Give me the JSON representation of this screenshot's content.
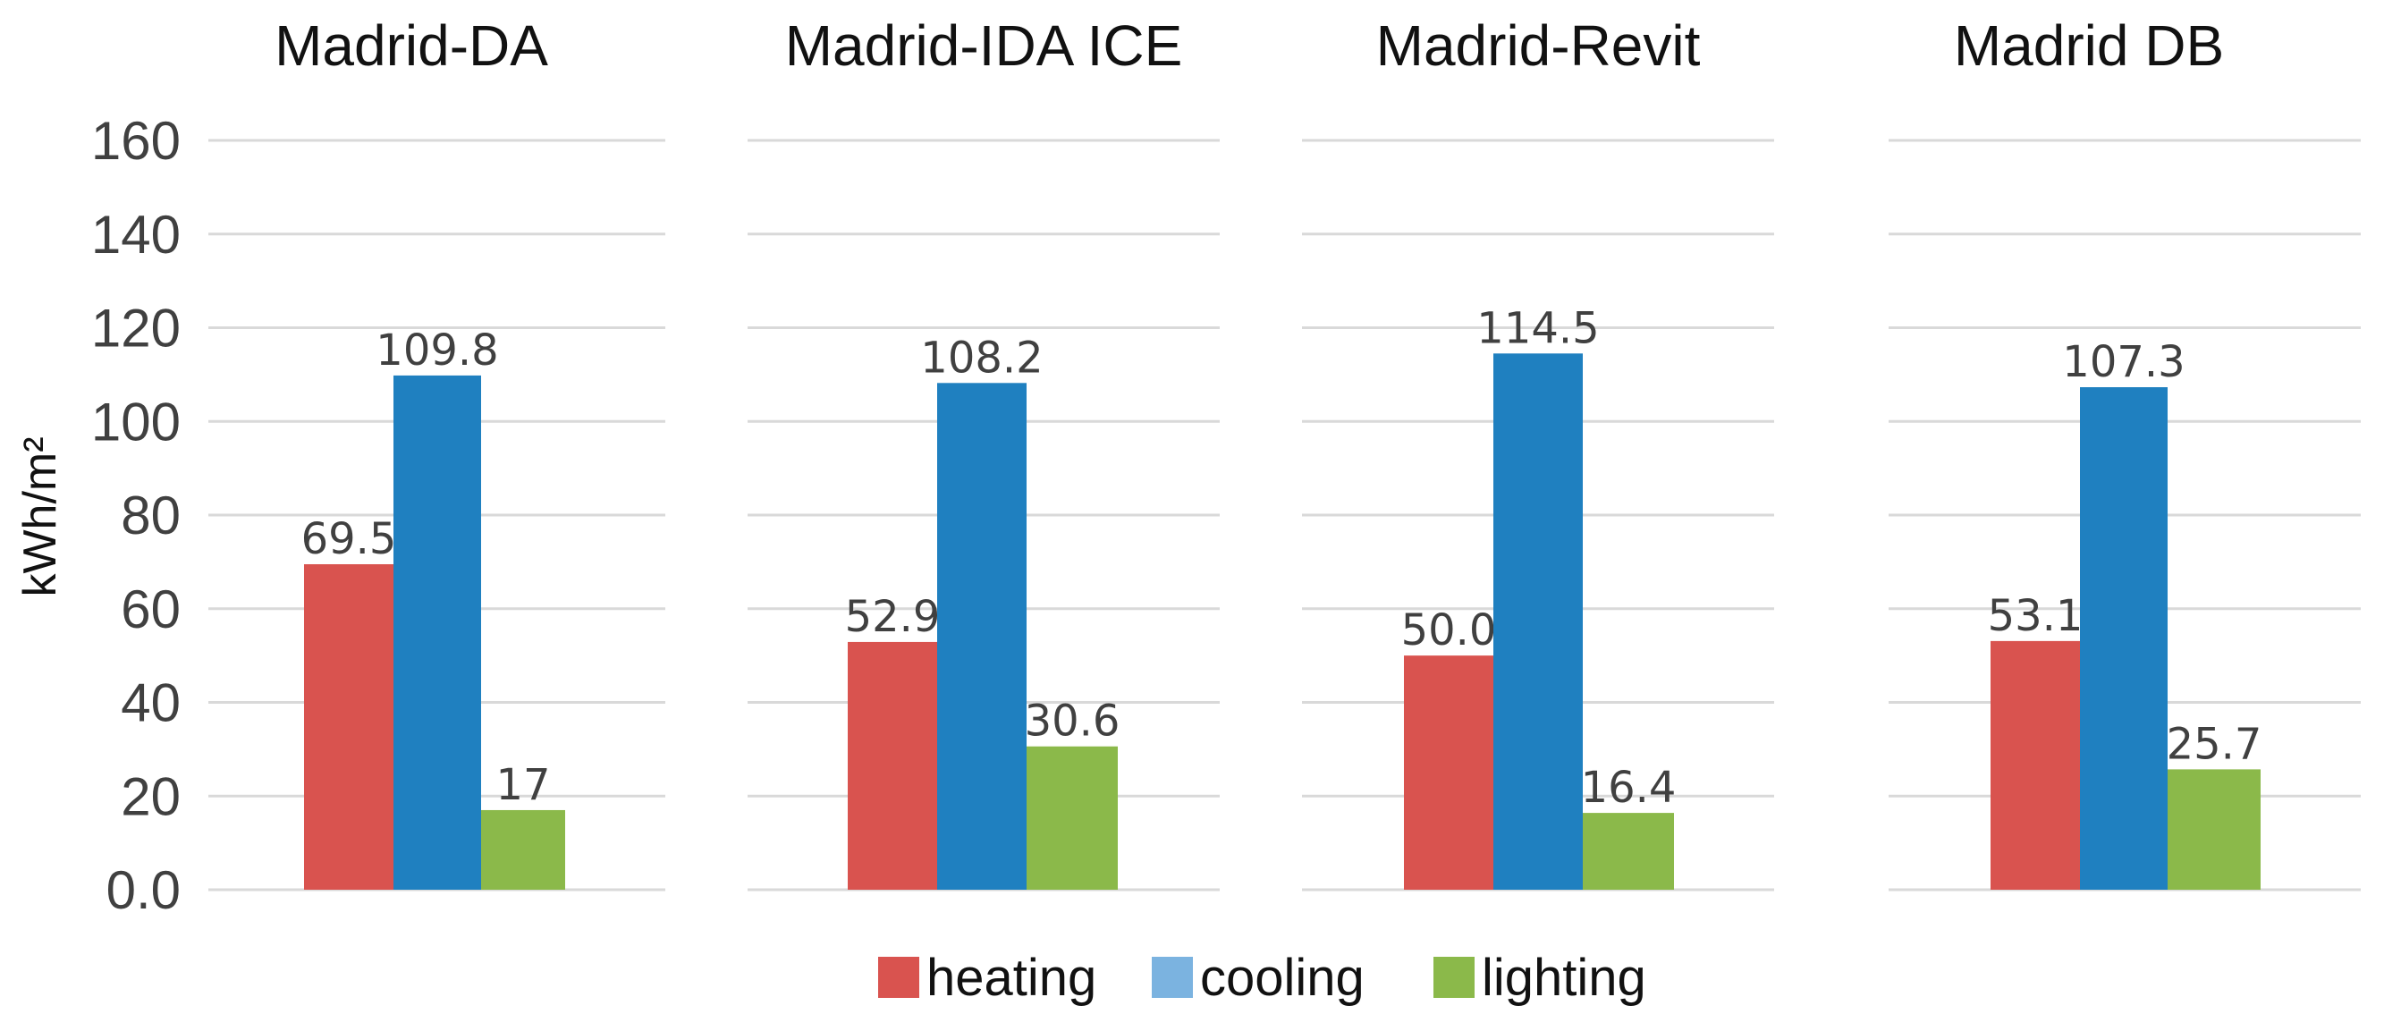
{
  "chart_data": {
    "type": "bar",
    "ylabel": "kWh/m²",
    "ylim": [
      0,
      160
    ],
    "yticks": [
      "0.0",
      "20",
      "40",
      "60",
      "80",
      "100",
      "120",
      "140",
      "160"
    ],
    "grid": true,
    "legend_position": "bottom-center",
    "series_names": [
      "heating",
      "cooling",
      "lighting"
    ],
    "series_colors": [
      "#d9534f",
      "#1f80c0",
      "#8bb94a"
    ],
    "legend_colors": [
      "#d9534f",
      "#7bb3e0",
      "#8bb94a"
    ],
    "panels": [
      {
        "title": "Madrid-DA",
        "values": [
          69.5,
          109.8,
          17
        ],
        "labels": [
          "69.5",
          "109.8",
          "17"
        ]
      },
      {
        "title": "Madrid-IDA ICE",
        "values": [
          52.9,
          108.2,
          30.6
        ],
        "labels": [
          "52.9",
          "108.2",
          "30.6"
        ]
      },
      {
        "title": "Madrid-Revit",
        "values": [
          50.0,
          114.5,
          16.4
        ],
        "labels": [
          "50.0",
          "114.5",
          "16.4"
        ]
      },
      {
        "title": "Madrid DB",
        "values": [
          53.1,
          107.3,
          25.7
        ],
        "labels": [
          "53.1",
          "107.3",
          "25.7"
        ]
      }
    ]
  }
}
